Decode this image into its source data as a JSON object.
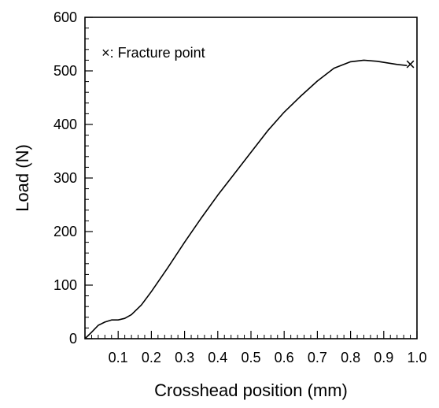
{
  "chart_data": {
    "type": "line",
    "xlabel": "Crosshead position (mm)",
    "ylabel": "Load (N)",
    "xlim": [
      0,
      1.0
    ],
    "ylim": [
      0,
      600
    ],
    "x_ticks": [
      0.1,
      0.2,
      0.3,
      0.4,
      0.5,
      0.6,
      0.7,
      0.8,
      0.9,
      1.0
    ],
    "x_tick_labels": [
      "0.1",
      "0.2",
      "0.3",
      "0.4",
      "0.5",
      "0.6",
      "0.7",
      "0.8",
      "0.9",
      "1.0"
    ],
    "y_ticks": [
      0,
      100,
      200,
      300,
      400,
      500,
      600
    ],
    "y_tick_labels": [
      "0",
      "100",
      "200",
      "300",
      "400",
      "500",
      "600"
    ],
    "grid": false,
    "series": [
      {
        "x": [
          0.0,
          0.02,
          0.04,
          0.06,
          0.08,
          0.1,
          0.12,
          0.14,
          0.17,
          0.2,
          0.25,
          0.3,
          0.35,
          0.4,
          0.45,
          0.5,
          0.55,
          0.6,
          0.65,
          0.7,
          0.75,
          0.8,
          0.84,
          0.88,
          0.91,
          0.94,
          0.97
        ],
        "y": [
          0,
          12,
          25,
          31,
          35,
          35,
          38,
          45,
          63,
          88,
          133,
          180,
          225,
          268,
          308,
          348,
          388,
          423,
          453,
          481,
          505,
          517,
          520,
          518,
          515,
          512,
          510
        ],
        "color": "#000000"
      }
    ],
    "markers": [
      {
        "x": 0.98,
        "y": 512,
        "symbol": "×"
      }
    ],
    "annotations": [
      {
        "text": "×: Fracture point",
        "x": 0.05,
        "y": 525
      }
    ]
  }
}
